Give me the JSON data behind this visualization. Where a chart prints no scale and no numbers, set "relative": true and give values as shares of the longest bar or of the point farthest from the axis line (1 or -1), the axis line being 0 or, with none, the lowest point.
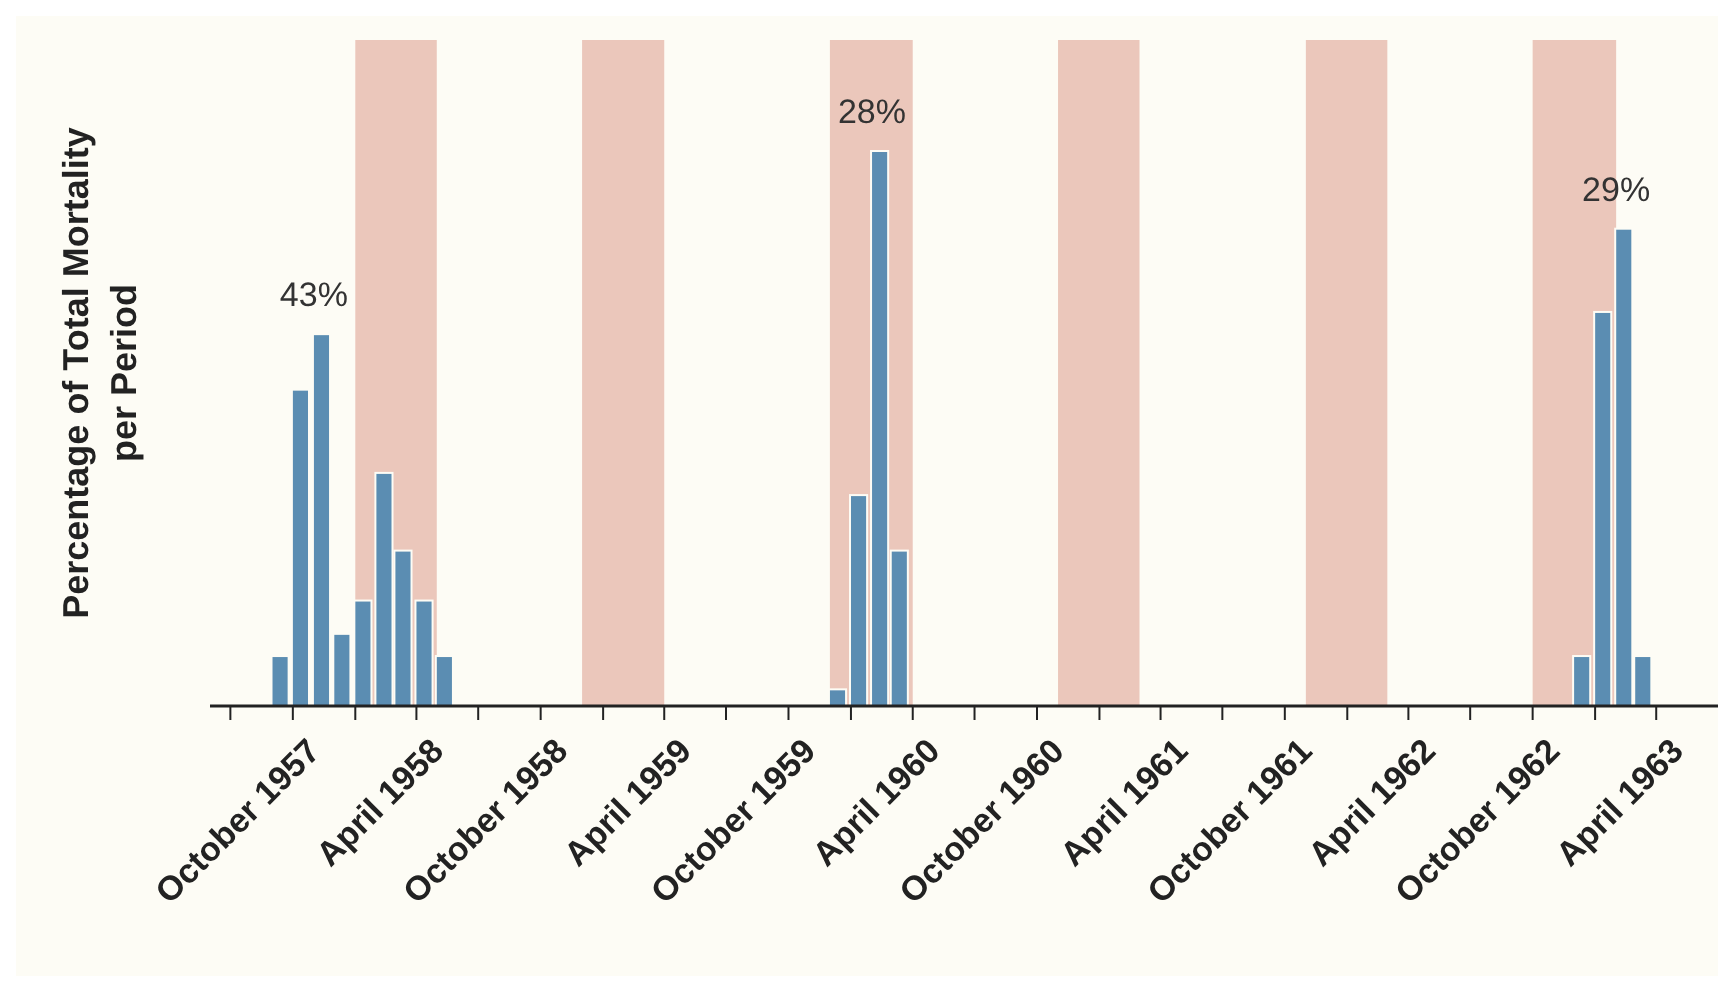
{
  "chart_data": {
    "type": "bar",
    "relative": true,
    "ylabel": "Percentage of Total Mortality per Period",
    "x": [
      "1957-09",
      "1957-10",
      "1957-11",
      "1957-12",
      "1958-01",
      "1958-02",
      "1958-03",
      "1958-04",
      "1958-05",
      "1959-12",
      "1960-01",
      "1960-02",
      "1960-03",
      "1962-12",
      "1963-01",
      "1963-02",
      "1963-03"
    ],
    "values": [
      0.09,
      0.57,
      0.67,
      0.13,
      0.19,
      0.42,
      0.28,
      0.19,
      0.09,
      0.03,
      0.38,
      1,
      0.28,
      0.09,
      0.71,
      0.86,
      0.09
    ],
    "color": "#5b8db2",
    "xlim": [
      "1957-06",
      "1963-07"
    ],
    "xticks": [
      {
        "value": "1957-07",
        "label": null
      },
      {
        "value": "1957-10",
        "label": "October 1957"
      },
      {
        "value": "1958-01",
        "label": null
      },
      {
        "value": "1958-04",
        "label": "April 1958"
      },
      {
        "value": "1958-07",
        "label": null
      },
      {
        "value": "1958-10",
        "label": "October 1958"
      },
      {
        "value": "1959-01",
        "label": null
      },
      {
        "value": "1959-04",
        "label": "April 1959"
      },
      {
        "value": "1959-07",
        "label": null
      },
      {
        "value": "1959-10",
        "label": "October 1959"
      },
      {
        "value": "1960-01",
        "label": null
      },
      {
        "value": "1960-04",
        "label": "April 1960"
      },
      {
        "value": "1960-07",
        "label": null
      },
      {
        "value": "1960-10",
        "label": "October 1960"
      },
      {
        "value": "1961-01",
        "label": null
      },
      {
        "value": "1961-04",
        "label": "April 1961"
      },
      {
        "value": "1961-07",
        "label": null
      },
      {
        "value": "1961-10",
        "label": "October 1961"
      },
      {
        "value": "1962-01",
        "label": null
      },
      {
        "value": "1962-04",
        "label": "April 1962"
      },
      {
        "value": "1962-07",
        "label": null
      },
      {
        "value": "1962-10",
        "label": "October 1962"
      },
      {
        "value": "1963-01",
        "label": null
      },
      {
        "value": "1963-04",
        "label": "April 1963"
      }
    ],
    "bands": [
      {
        "axis": "x",
        "from": "1958-01",
        "to": "1958-05",
        "color": "#ebc7bb"
      },
      {
        "axis": "x",
        "from": "1958-12",
        "to": "1959-04",
        "color": "#ebc7bb"
      },
      {
        "axis": "x",
        "from": "1959-12",
        "to": "1960-04",
        "color": "#ebc7bb"
      },
      {
        "axis": "x",
        "from": "1960-11",
        "to": "1961-03",
        "color": "#ebc7bb"
      },
      {
        "axis": "x",
        "from": "1961-11",
        "to": "1962-03",
        "color": "#ebc7bb"
      },
      {
        "axis": "x",
        "from": "1962-10",
        "to": "1963-02",
        "color": "#ebc7bb"
      }
    ],
    "annotations": [
      "43%",
      "28%",
      "29%"
    ],
    "grid": false,
    "legend": false
  }
}
